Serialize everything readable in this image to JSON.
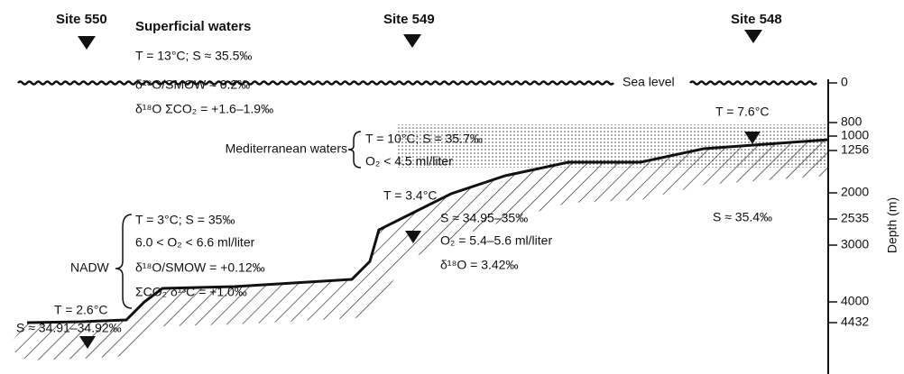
{
  "sites": [
    {
      "label": "Site 550"
    },
    {
      "label": "Site 549"
    },
    {
      "label": "Site 548"
    }
  ],
  "superficial": {
    "title": "Superficial waters",
    "lines": [
      "T = 13°C; S ≈ 35.5‰",
      "δ¹⁸O/SMOW ≈ 0.2‰",
      "δ¹⁸O ΣCO₂ = +1.6–1.9‰"
    ]
  },
  "sea_level": "Sea level",
  "mediterranean": {
    "title": "Mediterranean waters",
    "lines": [
      "T = 10°C; S = 35.7‰",
      "O₂ < 4.5 ml/liter"
    ]
  },
  "site548": {
    "temp": "T = 7.6°C",
    "salinity": "S ≈ 35.4‰"
  },
  "site549": {
    "temp": "T = 3.4°C",
    "lines": [
      "S ≈ 34.95–35‰",
      "O₂ = 5.4–5.6 ml/liter",
      "δ¹⁸O = 3.42‰"
    ]
  },
  "nadw": {
    "title": "NADW",
    "lines": [
      "T = 3°C; S = 35‰",
      "6.0 < O₂ < 6.6 ml/liter",
      "δ¹⁸O/SMOW = +0.12‰",
      "ΣCO₂ δ¹³C = +1.0‰"
    ]
  },
  "site550": {
    "temp": "T = 2.6°C",
    "salinity": "S ≈ 34.91–34.92‰"
  },
  "depth_axis": {
    "label": "Depth (m)",
    "ticks": [
      0,
      800,
      1000,
      1256,
      2000,
      2535,
      3000,
      4000,
      4432
    ]
  }
}
